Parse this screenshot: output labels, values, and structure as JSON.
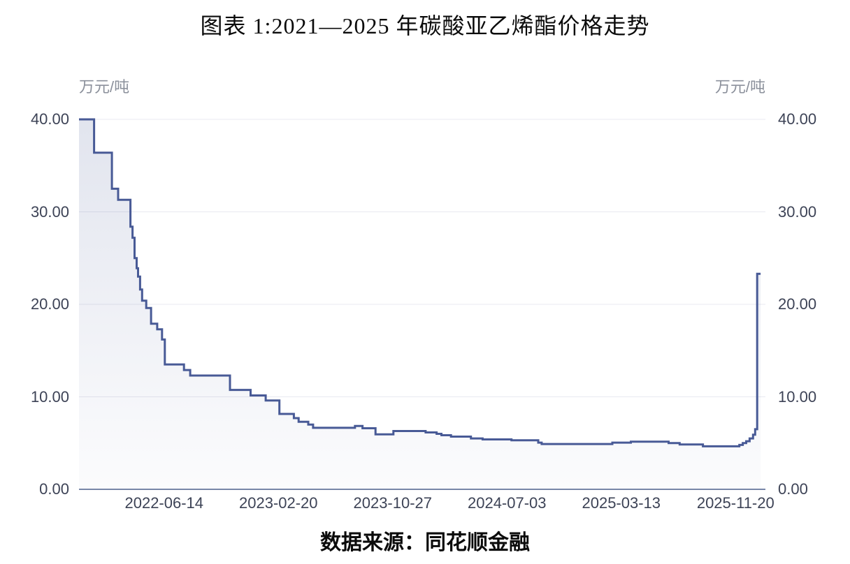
{
  "title": "图表 1:2021—2025 年碳酸亚乙烯酯价格走势",
  "caption": "数据来源：同花顺金融",
  "chart_data": {
    "type": "area",
    "title": "图表 1:2021—2025 年碳酸亚乙烯酯价格走势",
    "source": "同花顺金融",
    "unit_left": "万元/吨",
    "unit_right": "万元/吨",
    "ylabel": "万元/吨",
    "ylim": [
      0,
      40
    ],
    "grid": "horizontal",
    "legend_position": "none",
    "y_tick_values": [
      40,
      30,
      20,
      10,
      0
    ],
    "y_tick_labels": [
      "40.00",
      "30.00",
      "20.00",
      "10.00",
      "0.00"
    ],
    "x_tick_labels": [
      "2022-06-14",
      "2023-02-20",
      "2023-10-27",
      "2024-07-03",
      "2025-03-13",
      "2025-11-20"
    ],
    "colors": {
      "line": "#485a96",
      "area_top": "rgba(72,90,150,0.16)",
      "area_bottom": "rgba(72,90,150,0.02)",
      "grid": "#e8e9f0",
      "axis": "#7886a8",
      "tick_text": "#3d4356",
      "unit_text": "#8b909b"
    },
    "series": [
      {
        "name": "碳酸亚乙烯酯价格",
        "x_is_fraction_of_axis": true,
        "points": [
          [
            0.0,
            40.0
          ],
          [
            0.022,
            36.4
          ],
          [
            0.048,
            32.5
          ],
          [
            0.057,
            31.3
          ],
          [
            0.075,
            28.4
          ],
          [
            0.078,
            27.2
          ],
          [
            0.081,
            25.0
          ],
          [
            0.084,
            23.9
          ],
          [
            0.086,
            23.0
          ],
          [
            0.089,
            21.6
          ],
          [
            0.092,
            20.4
          ],
          [
            0.098,
            19.6
          ],
          [
            0.105,
            17.9
          ],
          [
            0.114,
            17.3
          ],
          [
            0.121,
            16.2
          ],
          [
            0.125,
            13.5
          ],
          [
            0.153,
            12.9
          ],
          [
            0.162,
            12.3
          ],
          [
            0.22,
            10.75
          ],
          [
            0.25,
            10.15
          ],
          [
            0.272,
            9.6
          ],
          [
            0.292,
            8.15
          ],
          [
            0.313,
            7.7
          ],
          [
            0.32,
            7.3
          ],
          [
            0.334,
            7.0
          ],
          [
            0.341,
            6.65
          ],
          [
            0.402,
            6.85
          ],
          [
            0.413,
            6.6
          ],
          [
            0.432,
            5.95
          ],
          [
            0.458,
            6.3
          ],
          [
            0.505,
            6.15
          ],
          [
            0.521,
            6.0
          ],
          [
            0.528,
            5.85
          ],
          [
            0.542,
            5.7
          ],
          [
            0.571,
            5.5
          ],
          [
            0.588,
            5.4
          ],
          [
            0.63,
            5.3
          ],
          [
            0.669,
            5.05
          ],
          [
            0.674,
            4.9
          ],
          [
            0.777,
            5.05
          ],
          [
            0.804,
            5.15
          ],
          [
            0.859,
            5.0
          ],
          [
            0.875,
            4.85
          ],
          [
            0.909,
            4.65
          ],
          [
            0.962,
            4.8
          ],
          [
            0.967,
            5.0
          ],
          [
            0.972,
            5.2
          ],
          [
            0.977,
            5.5
          ],
          [
            0.982,
            5.9
          ],
          [
            0.985,
            6.5
          ],
          [
            0.988,
            23.3
          ]
        ],
        "end_fraction": 0.993
      }
    ]
  }
}
